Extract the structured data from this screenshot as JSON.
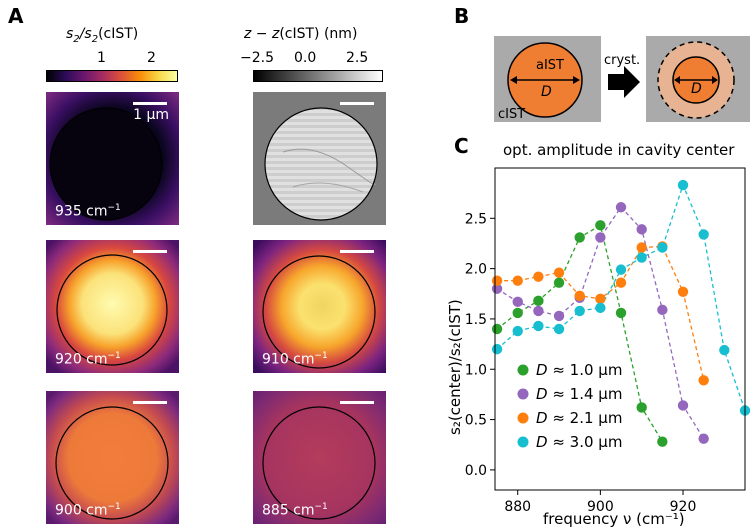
{
  "panel_a": {
    "letter": "A",
    "colorbar_left": {
      "title_num": "s",
      "title_sub": "2",
      "title_slash": "/s",
      "title_sub2": "2",
      "title_tail": "(cIST)",
      "ticks": [
        "1",
        "2"
      ]
    },
    "colorbar_right": {
      "title_z": "z − z",
      "title_tail": "(cIST) (nm)",
      "ticks": [
        "−2.5",
        "0.0",
        "2.5"
      ]
    },
    "scale_label": "1 μm",
    "tiles": [
      {
        "label_num": "935 cm",
        "label_exp": "−1"
      },
      {
        "label_num": "920 cm",
        "label_exp": "−1"
      },
      {
        "label_num": "910 cm",
        "label_exp": "−1"
      },
      {
        "label_num": "900 cm",
        "label_exp": "−1"
      },
      {
        "label_num": "885 cm",
        "label_exp": "−1"
      }
    ]
  },
  "panel_b": {
    "letter": "B",
    "outer_label": "cIST",
    "inner_label": "aIST",
    "d_label": "D",
    "arrow_label": "cryst.",
    "colors": {
      "gray": "#aaaaaa",
      "orange": "#ef7d32",
      "light_orange": "#e7b392"
    }
  },
  "chart_data": {
    "letter": "C",
    "type": "line",
    "title": "opt. amplitude in cavity center",
    "xlabel": "frequency ν (cm⁻¹)",
    "ylabel": "s₂(center)/s₂(cIST)",
    "xlim": [
      874.5,
      935
    ],
    "ylim": [
      -0.2,
      3.0
    ],
    "xticks": [
      880,
      900,
      920
    ],
    "yticks": [
      "0.0",
      "0.5",
      "1.0",
      "1.5",
      "2.0",
      "2.5"
    ],
    "series": [
      {
        "name": "D ≈ 1.0 μm",
        "color": "#2ca02c",
        "x": [
          875,
          880,
          885,
          890,
          895,
          900,
          905,
          910,
          915
        ],
        "y": [
          1.4,
          1.56,
          1.68,
          1.86,
          2.31,
          2.43,
          1.56,
          0.62,
          0.28
        ]
      },
      {
        "name": "D ≈ 1.4 μm",
        "color": "#9467bd",
        "x": [
          875,
          880,
          885,
          890,
          895,
          900,
          905,
          910,
          915,
          920,
          925
        ],
        "y": [
          1.8,
          1.67,
          1.58,
          1.53,
          1.71,
          2.31,
          2.61,
          2.39,
          1.59,
          0.64,
          0.31
        ]
      },
      {
        "name": "D ≈ 2.1 μm",
        "color": "#ff7f0e",
        "x": [
          875,
          880,
          885,
          890,
          895,
          900,
          905,
          910,
          915,
          920,
          925
        ],
        "y": [
          1.88,
          1.88,
          1.92,
          1.96,
          1.73,
          1.7,
          1.86,
          2.21,
          2.22,
          1.77,
          0.89
        ]
      },
      {
        "name": "D ≈ 3.0 μm",
        "color": "#17becf",
        "x": [
          875,
          880,
          885,
          890,
          895,
          900,
          905,
          910,
          915,
          920,
          925,
          930,
          935
        ],
        "y": [
          1.2,
          1.38,
          1.43,
          1.4,
          1.58,
          1.61,
          1.99,
          2.11,
          2.21,
          2.83,
          2.34,
          1.19,
          0.59
        ]
      }
    ],
    "legend": [
      {
        "prefix": "D",
        "suffix": " ≈ 1.0 μm"
      },
      {
        "prefix": "D",
        "suffix": " ≈ 1.4 μm"
      },
      {
        "prefix": "D",
        "suffix": " ≈ 2.1 μm"
      },
      {
        "prefix": "D",
        "suffix": " ≈ 3.0 μm"
      }
    ]
  }
}
